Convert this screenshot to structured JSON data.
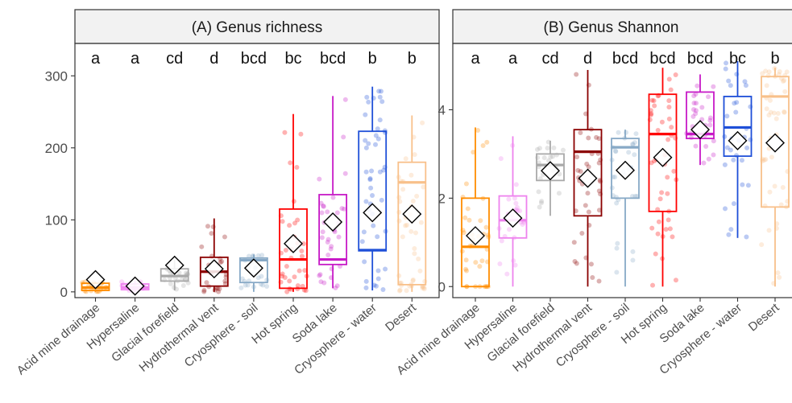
{
  "chart_data": [
    {
      "type": "boxplot",
      "title": "Genus richness",
      "panel_label": "(A)",
      "ylim": [
        -8,
        345
      ],
      "yticks": [
        0,
        100,
        200,
        300
      ],
      "categories": [
        "Acid mine drainage",
        "Hypersaline",
        "Glacial forefield",
        "Hydrothermal vent",
        "Cryosphere - soil",
        "Hot spring",
        "Soda lake",
        "Cryosphere - water",
        "Desert"
      ],
      "letters": [
        "a",
        "a",
        "cd",
        "d",
        "bcd",
        "bc",
        "bcd",
        "b",
        "b"
      ],
      "colors": [
        "#ff8c00",
        "#ee82ee",
        "#a9a9a9",
        "#8b0000",
        "#87a9c6",
        "#ff0000",
        "#c71ac7",
        "#1e4fd8",
        "#f8c08a"
      ],
      "boxes": [
        {
          "q1": 2,
          "median": 6,
          "q3": 12,
          "whisker_low": 0,
          "whisker_high": 14,
          "mean": 17
        },
        {
          "q1": 3,
          "median": 6,
          "q3": 11,
          "whisker_low": 0,
          "whisker_high": 16,
          "mean": 8
        },
        {
          "q1": 15,
          "median": 22,
          "q3": 32,
          "whisker_low": 2,
          "whisker_high": 45,
          "mean": 37
        },
        {
          "q1": 8,
          "median": 28,
          "q3": 48,
          "whisker_low": 0,
          "whisker_high": 102,
          "mean": 32
        },
        {
          "q1": 13,
          "median": 44,
          "q3": 47,
          "whisker_low": 0,
          "whisker_high": 52,
          "mean": 33
        },
        {
          "q1": 5,
          "median": 45,
          "q3": 115,
          "whisker_low": 0,
          "whisker_high": 247,
          "mean": 67
        },
        {
          "q1": 38,
          "median": 45,
          "q3": 135,
          "whisker_low": 5,
          "whisker_high": 272,
          "mean": 97
        },
        {
          "q1": 57,
          "median": 58,
          "q3": 223,
          "whisker_low": 2,
          "whisker_high": 285,
          "mean": 110
        },
        {
          "q1": 10,
          "median": 152,
          "q3": 180,
          "whisker_low": 0,
          "whisker_high": 245,
          "mean": 108
        }
      ]
    },
    {
      "type": "boxplot",
      "title": "Genus Shannon",
      "panel_label": "(B)",
      "ylim": [
        -0.25,
        5.5
      ],
      "yticks": [
        0,
        2,
        4
      ],
      "categories": [
        "Acid mine drainage",
        "Hypersaline",
        "Glacial forefield",
        "Hydrothermal vent",
        "Cryosphere - soil",
        "Hot spring",
        "Soda lake",
        "Cryosphere - water",
        "Desert"
      ],
      "letters": [
        "a",
        "a",
        "cd",
        "d",
        "bcd",
        "bcd",
        "bcd",
        "bc",
        "b"
      ],
      "colors": [
        "#ff8c00",
        "#ee82ee",
        "#a9a9a9",
        "#8b0000",
        "#87a9c6",
        "#ff0000",
        "#c71ac7",
        "#1e4fd8",
        "#f8c08a"
      ],
      "boxes": [
        {
          "q1": 0.0,
          "median": 0.9,
          "q3": 2.0,
          "whisker_low": 0.0,
          "whisker_high": 3.6,
          "mean": 1.15
        },
        {
          "q1": 1.1,
          "median": 1.5,
          "q3": 2.05,
          "whisker_low": 0.0,
          "whisker_high": 3.4,
          "mean": 1.55
        },
        {
          "q1": 2.4,
          "median": 2.75,
          "q3": 3.0,
          "whisker_low": 1.6,
          "whisker_high": 3.3,
          "mean": 2.62
        },
        {
          "q1": 1.6,
          "median": 3.05,
          "q3": 3.55,
          "whisker_low": 0.0,
          "whisker_high": 4.9,
          "mean": 2.45
        },
        {
          "q1": 2.0,
          "median": 3.15,
          "q3": 3.35,
          "whisker_low": 0.0,
          "whisker_high": 3.55,
          "mean": 2.63
        },
        {
          "q1": 1.7,
          "median": 3.45,
          "q3": 4.35,
          "whisker_low": 0.0,
          "whisker_high": 4.95,
          "mean": 2.92
        },
        {
          "q1": 3.35,
          "median": 3.45,
          "q3": 4.4,
          "whisker_low": 2.75,
          "whisker_high": 4.8,
          "mean": 3.55
        },
        {
          "q1": 2.95,
          "median": 3.6,
          "q3": 4.3,
          "whisker_low": 1.1,
          "whisker_high": 5.1,
          "mean": 3.3
        },
        {
          "q1": 1.8,
          "median": 4.3,
          "q3": 4.75,
          "whisker_low": 0.0,
          "whisker_high": 4.95,
          "mean": 3.25
        }
      ]
    }
  ]
}
